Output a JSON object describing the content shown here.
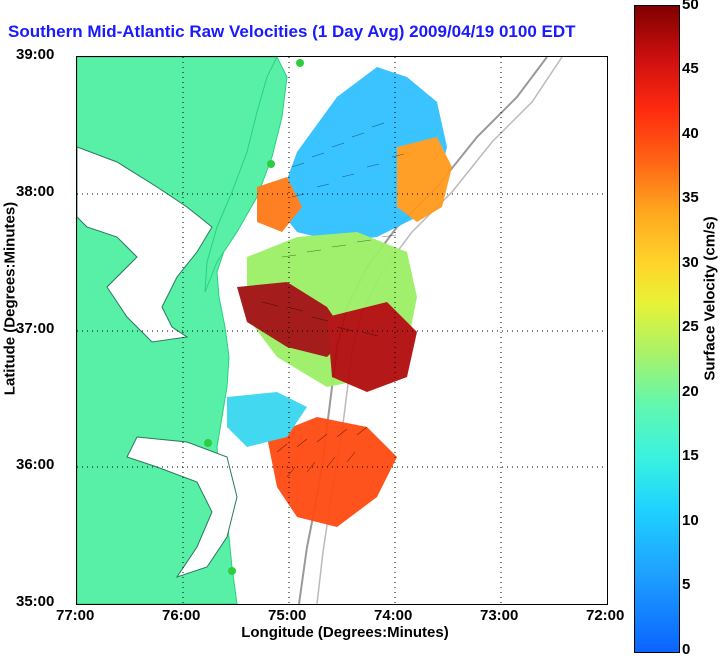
{
  "title": "Southern Mid-Atlantic Raw Velocities (1 Day Avg) 2009/04/19 0100 EDT",
  "x_axis": {
    "label": "Longitude (Degrees:Minutes)",
    "ticks": [
      "77:00",
      "76:00",
      "75:00",
      "74:00",
      "73:00",
      "72:00"
    ]
  },
  "y_axis": {
    "label": "Latitude (Degrees:Minutes)",
    "ticks": [
      "39:00",
      "38:00",
      "37:00",
      "36:00",
      "35:00"
    ]
  },
  "colorbar": {
    "label": "Surface Velocity (cm/s)",
    "ticks": [
      "50",
      "45",
      "40",
      "35",
      "30",
      "25",
      "20",
      "15",
      "10",
      "5",
      "0"
    ],
    "min": 0,
    "max": 50
  },
  "colors": {
    "land": "#57f0a6",
    "title": "#1a1aff"
  }
}
